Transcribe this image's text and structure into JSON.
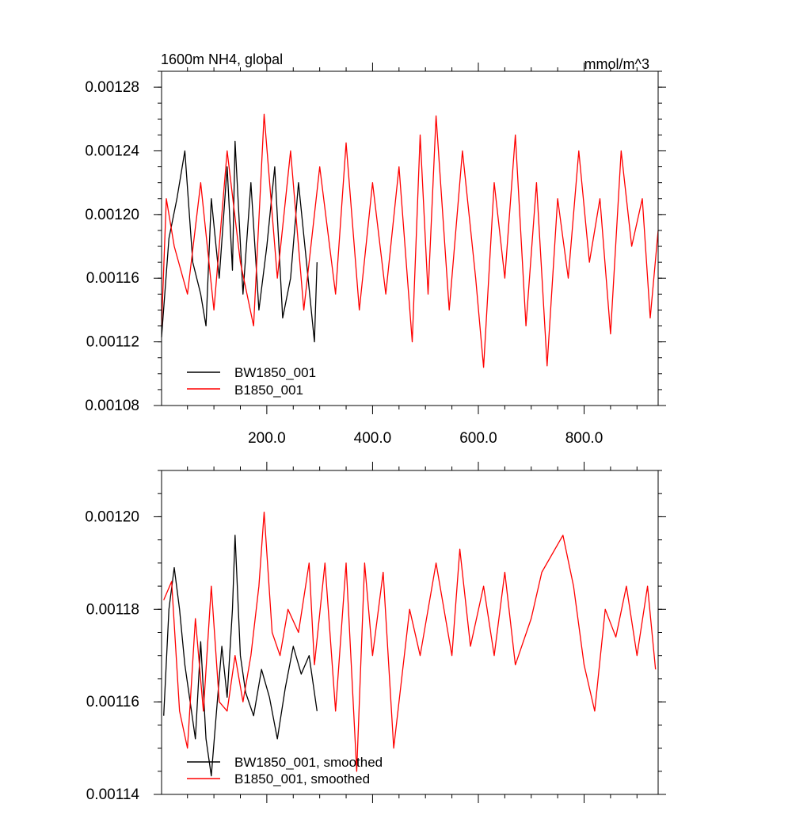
{
  "chart_data": [
    {
      "type": "line",
      "title": "1600m NH4, global",
      "units": "mmol/m^3",
      "xlim": [
        1,
        940
      ],
      "ylim": [
        0.00108,
        0.00129
      ],
      "x_ticks": [
        200,
        400,
        600,
        800
      ],
      "x_tick_labels": [
        "200.0",
        "400.0",
        "600.0",
        "800.0"
      ],
      "y_ticks": [
        0.00108,
        0.00112,
        0.00116,
        0.0012,
        0.00124,
        0.00128
      ],
      "y_tick_labels": [
        "0.00108",
        "0.00112",
        "0.00116",
        "0.00120",
        "0.00124",
        "0.00128"
      ],
      "legend": "bottom-left",
      "series": [
        {
          "name": "BW1850_001",
          "color": "#000000",
          "x": [
            1,
            15,
            30,
            45,
            60,
            75,
            85,
            95,
            110,
            125,
            135,
            140,
            155,
            170,
            185,
            200,
            215,
            230,
            245,
            260,
            275,
            290,
            295
          ],
          "values": [
            0.001123,
            0.001185,
            0.00121,
            0.00124,
            0.00117,
            0.00115,
            0.00113,
            0.00121,
            0.00116,
            0.00123,
            0.001165,
            0.001246,
            0.00115,
            0.00122,
            0.00114,
            0.00118,
            0.00123,
            0.001135,
            0.00116,
            0.00122,
            0.00117,
            0.00112,
            0.00117
          ]
        },
        {
          "name": "B1850_001",
          "color": "#ff0000",
          "x": [
            1,
            10,
            25,
            50,
            75,
            100,
            125,
            150,
            175,
            195,
            220,
            245,
            270,
            300,
            330,
            350,
            375,
            400,
            425,
            450,
            475,
            490,
            505,
            520,
            545,
            570,
            595,
            610,
            630,
            650,
            670,
            690,
            710,
            730,
            750,
            770,
            790,
            810,
            830,
            850,
            870,
            890,
            910,
            925,
            940
          ],
          "values": [
            0.00113,
            0.00121,
            0.00118,
            0.00115,
            0.00122,
            0.00114,
            0.00124,
            0.00117,
            0.00113,
            0.001263,
            0.00116,
            0.00124,
            0.00114,
            0.00123,
            0.00115,
            0.001245,
            0.00114,
            0.00122,
            0.00115,
            0.00123,
            0.00112,
            0.00125,
            0.00115,
            0.001262,
            0.00114,
            0.00124,
            0.00116,
            0.001104,
            0.00122,
            0.00116,
            0.00125,
            0.00113,
            0.00122,
            0.001105,
            0.00121,
            0.00116,
            0.00124,
            0.00117,
            0.00121,
            0.001125,
            0.00124,
            0.00118,
            0.00121,
            0.001135,
            0.00119
          ]
        }
      ]
    },
    {
      "type": "line",
      "xlim": [
        1,
        940
      ],
      "ylim": [
        0.00114,
        0.00121
      ],
      "x_ticks": [
        200,
        400,
        600,
        800
      ],
      "y_ticks": [
        0.00114,
        0.00116,
        0.00118,
        0.0012
      ],
      "y_tick_labels": [
        "0.00114",
        "0.00116",
        "0.00118",
        "0.00120"
      ],
      "legend": "bottom-left",
      "series": [
        {
          "name": "BW1850_001, smoothed",
          "color": "#000000",
          "x": [
            5,
            15,
            25,
            35,
            45,
            55,
            65,
            75,
            85,
            95,
            105,
            115,
            125,
            135,
            140,
            150,
            160,
            175,
            190,
            205,
            220,
            235,
            250,
            265,
            280,
            295
          ],
          "values": [
            0.001157,
            0.00118,
            0.001189,
            0.00118,
            0.001168,
            0.00116,
            0.001152,
            0.001173,
            0.001152,
            0.001144,
            0.001158,
            0.001172,
            0.001161,
            0.00118,
            0.001196,
            0.00117,
            0.001162,
            0.001157,
            0.001167,
            0.001161,
            0.001152,
            0.001163,
            0.001172,
            0.001166,
            0.00117,
            0.001158
          ]
        },
        {
          "name": "B1850_001, smoothed",
          "color": "#ff0000",
          "x": [
            5,
            20,
            35,
            50,
            65,
            80,
            95,
            110,
            125,
            140,
            155,
            170,
            185,
            195,
            210,
            225,
            240,
            260,
            280,
            290,
            310,
            330,
            350,
            370,
            385,
            400,
            420,
            440,
            470,
            490,
            520,
            550,
            565,
            585,
            610,
            630,
            650,
            670,
            700,
            720,
            760,
            780,
            800,
            820,
            840,
            860,
            880,
            900,
            920,
            935
          ],
          "values": [
            0.001182,
            0.001186,
            0.001158,
            0.00115,
            0.001178,
            0.001158,
            0.001185,
            0.00116,
            0.001158,
            0.00117,
            0.00116,
            0.00117,
            0.001185,
            0.001201,
            0.001175,
            0.00117,
            0.00118,
            0.001175,
            0.00119,
            0.001168,
            0.00119,
            0.001158,
            0.00119,
            0.001145,
            0.00119,
            0.00117,
            0.001188,
            0.00115,
            0.00118,
            0.00117,
            0.00119,
            0.00117,
            0.001193,
            0.001172,
            0.001185,
            0.00117,
            0.001188,
            0.001168,
            0.001178,
            0.001188,
            0.001196,
            0.001185,
            0.001168,
            0.001158,
            0.00118,
            0.001174,
            0.001185,
            0.00117,
            0.001185,
            0.001167
          ]
        }
      ]
    }
  ]
}
